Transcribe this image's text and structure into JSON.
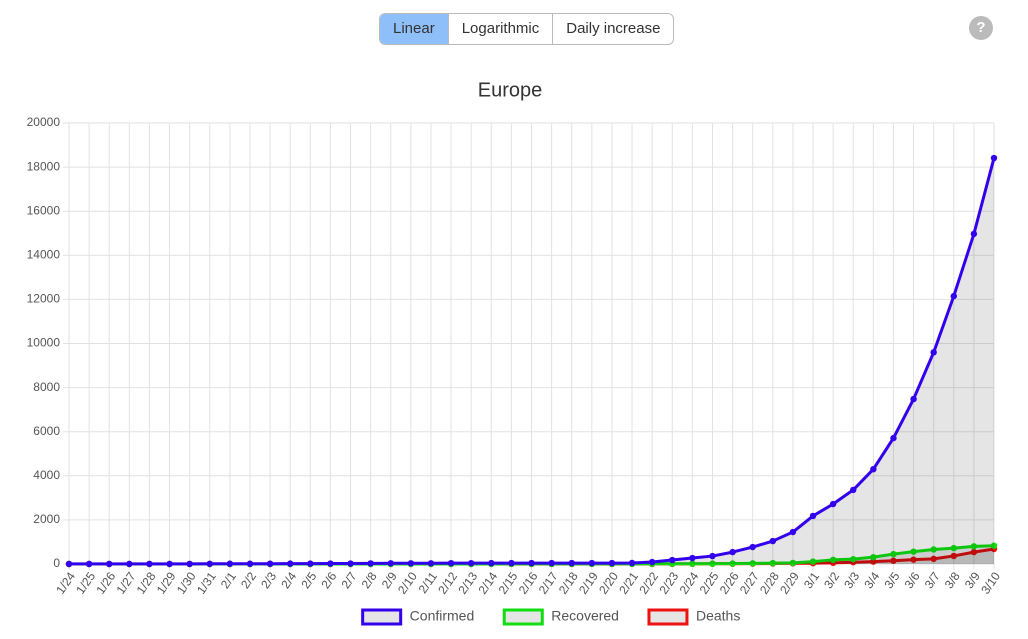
{
  "ui": {
    "tabs": [
      "Linear",
      "Logarithmic",
      "Daily increase"
    ],
    "help": "?"
  },
  "chart_data": {
    "type": "line",
    "title": "Europe",
    "categories": [
      "1/24",
      "1/25",
      "1/26",
      "1/27",
      "1/28",
      "1/29",
      "1/30",
      "1/31",
      "2/1",
      "2/2",
      "2/3",
      "2/4",
      "2/5",
      "2/6",
      "2/7",
      "2/8",
      "2/9",
      "2/10",
      "2/11",
      "2/12",
      "2/13",
      "2/14",
      "2/15",
      "2/16",
      "2/17",
      "2/18",
      "2/19",
      "2/20",
      "2/21",
      "2/22",
      "2/23",
      "2/24",
      "2/25",
      "2/26",
      "2/27",
      "2/28",
      "2/29",
      "3/1",
      "3/2",
      "3/3",
      "3/4",
      "3/5",
      "3/6",
      "3/7",
      "3/8",
      "3/9",
      "3/10"
    ],
    "series": [
      {
        "name": "Confirmed",
        "color": "#3300ee",
        "values": [
          3,
          3,
          3,
          4,
          5,
          5,
          5,
          10,
          13,
          13,
          14,
          17,
          18,
          20,
          21,
          27,
          32,
          33,
          33,
          38,
          39,
          40,
          42,
          42,
          42,
          42,
          42,
          42,
          47,
          90,
          180,
          270,
          360,
          540,
          770,
          1040,
          1450,
          2180,
          2720,
          3360,
          4300,
          5710,
          7480,
          9600,
          12150,
          14970,
          18410
        ]
      },
      {
        "name": "Recovered",
        "color": "#11dd11",
        "values": [
          0,
          0,
          0,
          0,
          0,
          0,
          0,
          0,
          0,
          0,
          0,
          0,
          0,
          0,
          0,
          0,
          0,
          2,
          2,
          2,
          2,
          2,
          4,
          4,
          4,
          5,
          5,
          5,
          5,
          10,
          14,
          14,
          14,
          20,
          30,
          40,
          50,
          110,
          190,
          220,
          310,
          450,
          560,
          660,
          720,
          800,
          830
        ]
      },
      {
        "name": "Deaths",
        "color": "#ee1111",
        "values": [
          0,
          0,
          0,
          0,
          0,
          0,
          0,
          0,
          0,
          0,
          0,
          0,
          0,
          0,
          0,
          0,
          0,
          0,
          0,
          0,
          0,
          1,
          1,
          1,
          1,
          1,
          1,
          1,
          1,
          3,
          4,
          7,
          11,
          12,
          17,
          21,
          29,
          35,
          52,
          80,
          107,
          148,
          197,
          233,
          366,
          540,
          680
        ]
      }
    ],
    "ylim": [
      0,
      20000
    ],
    "yticks": [
      0,
      2000,
      4000,
      6000,
      8000,
      10000,
      12000,
      14000,
      16000,
      18000,
      20000
    ],
    "grid": true,
    "legend": "bottom"
  }
}
